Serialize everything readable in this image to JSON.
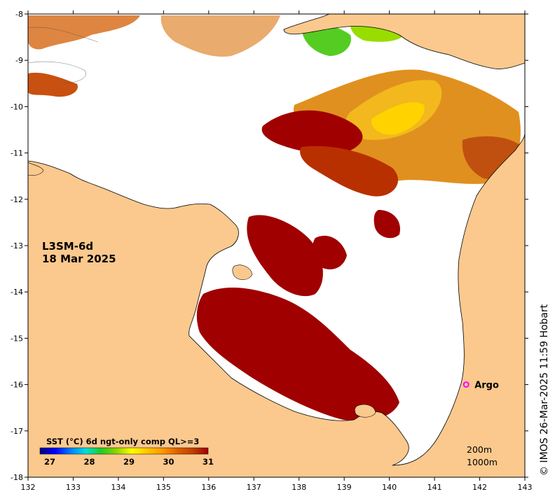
{
  "product": {
    "name": "L3SM-6d",
    "date": "18 Mar 2025"
  },
  "colorbar": {
    "title": "SST (°C) 6d ngt-only comp QL>=3",
    "min": 27,
    "max": 31,
    "ticks": [
      "27",
      "28",
      "29",
      "30",
      "31"
    ],
    "colors": [
      "#00007f",
      "#0000ff",
      "#007fff",
      "#00dfdf",
      "#22cc22",
      "#8fd300",
      "#ffff00",
      "#ffc800",
      "#ff9900",
      "#e06000",
      "#c04000",
      "#a00000"
    ]
  },
  "axes": {
    "x_ticks": [
      "132",
      "133",
      "134",
      "135",
      "136",
      "137",
      "138",
      "139",
      "140",
      "141",
      "142",
      "143"
    ],
    "y_ticks": [
      "-8",
      "-9",
      "-10",
      "-11",
      "-12",
      "-13",
      "-14",
      "-15",
      "-16",
      "-17",
      "-18"
    ],
    "lon_range": [
      132,
      143
    ],
    "lat_range": [
      -18,
      -8
    ]
  },
  "depth_legend": {
    "contour_a": "200m",
    "contour_b": "1000m"
  },
  "argo": {
    "label": "Argo",
    "lon": 141.7,
    "lat": -16.0,
    "color": "#ff00ff"
  },
  "credit": "© IMOS 26-Mar-2025 11:59 Hobart",
  "colors": {
    "land": "#fbc98e",
    "water": "#ffffff",
    "sst_hot": "#a00000",
    "sst_warm": "#d06010",
    "sst_mid": "#eba020",
    "sst_cool": "#ffd000",
    "sst_green": "#55cc22"
  }
}
